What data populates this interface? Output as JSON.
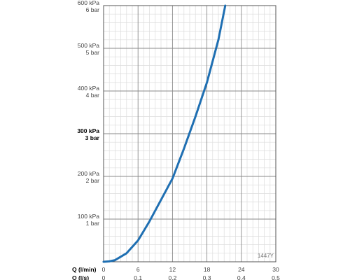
{
  "chart_data": {
    "type": "line",
    "title": "",
    "figure_code": "1447Y",
    "x_axes": [
      {
        "label": "Q (l/min)",
        "ticks": [
          "0",
          "6",
          "12",
          "18",
          "24",
          "30"
        ],
        "range": [
          0,
          30
        ]
      },
      {
        "label": "Q (l/s)",
        "ticks": [
          "0",
          "0.1",
          "0.2",
          "0.3",
          "0.4",
          "0.5"
        ],
        "range": [
          0,
          0.5
        ]
      }
    ],
    "y_axis": {
      "range": [
        0,
        600
      ],
      "unit": "kPa",
      "ticks": [
        {
          "value": 100,
          "kpa": "100 kPa",
          "bar": "1 bar",
          "bold": false
        },
        {
          "value": 200,
          "kpa": "200 kPa",
          "bar": "2 bar",
          "bold": false
        },
        {
          "value": 300,
          "kpa": "300 kPa",
          "bar": "3 bar",
          "bold": true
        },
        {
          "value": 400,
          "kpa": "400 kPa",
          "bar": "4 bar",
          "bold": false
        },
        {
          "value": 500,
          "kpa": "500 kPa",
          "bar": "5 bar",
          "bold": false
        },
        {
          "value": 600,
          "kpa": "600 kPa",
          "bar": "6 bar",
          "bold": false
        }
      ]
    },
    "grid": true,
    "series": [
      {
        "color": "#1f6fb2",
        "x": [
          0,
          1,
          2,
          4,
          6,
          8,
          10,
          12,
          14,
          16,
          18,
          20,
          21.2
        ],
        "y": [
          0,
          1,
          4,
          20,
          50,
          95,
          145,
          195,
          265,
          340,
          420,
          520,
          600
        ]
      }
    ]
  }
}
